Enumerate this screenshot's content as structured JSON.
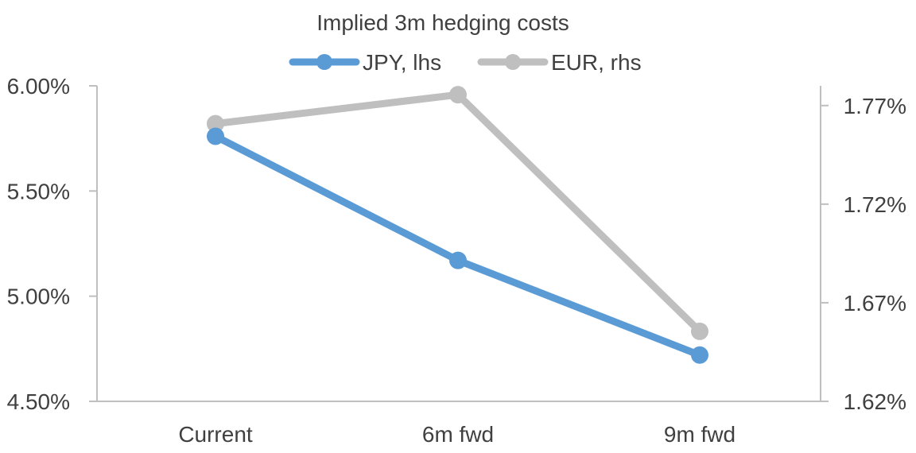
{
  "chart_data": {
    "type": "line",
    "title": "Implied 3m hedging costs",
    "categories": [
      "Current",
      "6m fwd",
      "9m fwd"
    ],
    "series": [
      {
        "name": "JPY, lhs",
        "axis": "left",
        "color": "#5b9bd5",
        "values": [
          5.76,
          5.17,
          4.72
        ]
      },
      {
        "name": "EUR, rhs",
        "axis": "right",
        "color": "#bfbfbf",
        "values": [
          1.7608,
          1.7755,
          1.6555
        ]
      }
    ],
    "y_left": {
      "min": 4.5,
      "max": 6.0,
      "ticks": [
        "4.50%",
        "5.00%",
        "5.50%",
        "6.00%"
      ],
      "tick_values": [
        4.5,
        5.0,
        5.5,
        6.0
      ]
    },
    "y_right": {
      "min": 1.62,
      "max": 1.78,
      "ticks": [
        "1.62%",
        "1.67%",
        "1.72%",
        "1.77%"
      ],
      "tick_values": [
        1.62,
        1.67,
        1.72,
        1.77
      ]
    },
    "grid": false,
    "legend_position": "top-center",
    "axis_color": "#bfbfbf"
  }
}
